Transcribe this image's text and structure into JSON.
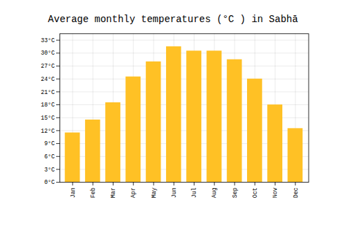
{
  "chart_data": {
    "type": "bar",
    "title": "Average monthly temperatures (°C ) in Sabhā",
    "categories": [
      "Jan",
      "Feb",
      "Mar",
      "Apr",
      "May",
      "Jun",
      "Jul",
      "Aug",
      "Sep",
      "Oct",
      "Nov",
      "Dec"
    ],
    "values": [
      11.5,
      14.5,
      18.5,
      24.5,
      28.0,
      31.5,
      30.5,
      30.5,
      28.5,
      24.0,
      18.0,
      12.5
    ],
    "color": "#FFC125",
    "ylim": [
      0,
      34.5
    ],
    "yticks": [
      {
        "value": 0,
        "label": "0°C"
      },
      {
        "value": 3,
        "label": "3°C"
      },
      {
        "value": 6,
        "label": "6°C"
      },
      {
        "value": 9,
        "label": "9°C"
      },
      {
        "value": 12,
        "label": "12°C"
      },
      {
        "value": 15,
        "label": "15°C"
      },
      {
        "value": 18,
        "label": "18°C"
      },
      {
        "value": 21,
        "label": "21°C"
      },
      {
        "value": 24,
        "label": "24°C"
      },
      {
        "value": 27,
        "label": "27°C"
      },
      {
        "value": 30,
        "label": "30°C"
      },
      {
        "value": 33,
        "label": "33°C"
      }
    ],
    "grid": true
  }
}
